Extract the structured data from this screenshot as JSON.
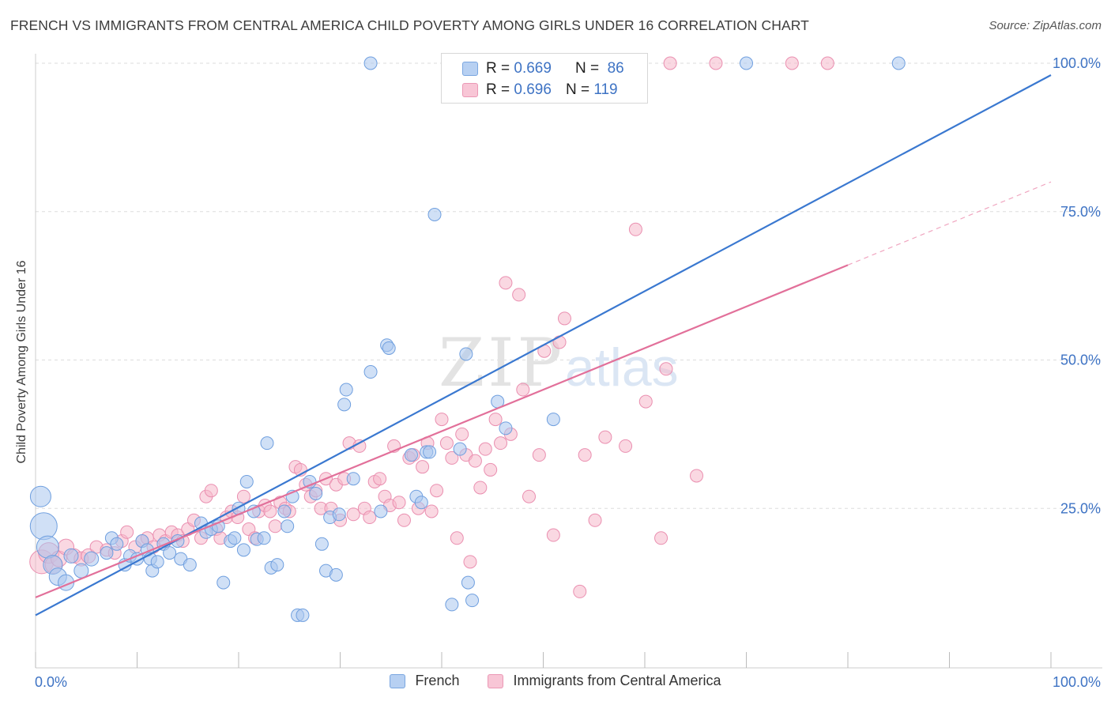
{
  "title": "FRENCH VS IMMIGRANTS FROM CENTRAL AMERICA CHILD POVERTY AMONG GIRLS UNDER 16 CORRELATION CHART",
  "source": "Source: ZipAtlas.com",
  "watermark": {
    "zip": "ZIP",
    "atlas": "atlas"
  },
  "colors": {
    "blue": "#3a78d0",
    "blue_fill": "#a9c6ef",
    "pink": "#e2709a",
    "pink_fill": "#f5b8cb",
    "axis_label": "#3e73c4",
    "grid": "#dddddd"
  },
  "legend_top": [
    {
      "r_label": "R =",
      "r": "0.669",
      "n_label": "N =",
      "n": "86"
    },
    {
      "r_label": "R =",
      "r": "0.696",
      "n_label": "N =",
      "n": "119"
    }
  ],
  "legend_bottom": [
    "French",
    "Immigrants from Central America"
  ],
  "chart_data": {
    "type": "scatter",
    "title": "FRENCH VS IMMIGRANTS FROM CENTRAL AMERICA CHILD POVERTY AMONG GIRLS UNDER 16 CORRELATION CHART",
    "xlabel": "",
    "ylabel": "Child Poverty Among Girls Under 16",
    "xlim": [
      0,
      100
    ],
    "ylim": [
      0,
      100
    ],
    "x_tick_labels": [
      "0.0%",
      "100.0%"
    ],
    "y_tick_labels": [
      "25.0%",
      "50.0%",
      "75.0%",
      "100.0%"
    ],
    "y_ticks": [
      25,
      50,
      75,
      100
    ],
    "grid": true,
    "legend": "top-center",
    "series": [
      {
        "name": "French",
        "color": "#3a78d0",
        "fill": "#a9c6ef",
        "R": 0.669,
        "N": 86,
        "trend": {
          "x": [
            0,
            100
          ],
          "y": [
            7,
            98
          ]
        },
        "points": [
          [
            0.5,
            27,
            13
          ],
          [
            0.8,
            22,
            17
          ],
          [
            1.2,
            18.5,
            14
          ],
          [
            1.7,
            15.5,
            12
          ],
          [
            2.2,
            13.5,
            11
          ],
          [
            3.0,
            12.5,
            10
          ],
          [
            3.5,
            17,
            9
          ],
          [
            4.5,
            14.5,
            9
          ],
          [
            5.5,
            16.5,
            9
          ],
          [
            7.0,
            17.5,
            8
          ],
          [
            7.5,
            20,
            8
          ],
          [
            8.0,
            19,
            8
          ],
          [
            8.8,
            15.5,
            8
          ],
          [
            9.3,
            17,
            8
          ],
          [
            10.0,
            16.5,
            8
          ],
          [
            10.5,
            19.5,
            8
          ],
          [
            11.0,
            18,
            8
          ],
          [
            11.3,
            16.5,
            8
          ],
          [
            11.5,
            14.5,
            8
          ],
          [
            12.0,
            16,
            8
          ],
          [
            12.6,
            19,
            8
          ],
          [
            13.2,
            17.5,
            8
          ],
          [
            14.0,
            19.5,
            8
          ],
          [
            14.3,
            16.5,
            8
          ],
          [
            15.2,
            15.5,
            8
          ],
          [
            16.3,
            22.5,
            8
          ],
          [
            16.8,
            21,
            8
          ],
          [
            17.3,
            21.5,
            8
          ],
          [
            18.0,
            22,
            8
          ],
          [
            18.5,
            12.5,
            8
          ],
          [
            19.2,
            19.5,
            8
          ],
          [
            19.6,
            20,
            8
          ],
          [
            20.0,
            25,
            8
          ],
          [
            20.5,
            18,
            8
          ],
          [
            20.8,
            29.5,
            8
          ],
          [
            21.5,
            24.5,
            8
          ],
          [
            21.8,
            19.8,
            8
          ],
          [
            22.5,
            20,
            8
          ],
          [
            22.8,
            36,
            8
          ],
          [
            23.2,
            15,
            8
          ],
          [
            23.8,
            15.5,
            8
          ],
          [
            24.5,
            24.5,
            8
          ],
          [
            24.8,
            22,
            8
          ],
          [
            25.3,
            27,
            8
          ],
          [
            25.8,
            7,
            8
          ],
          [
            26.3,
            7,
            8
          ],
          [
            27.0,
            29.5,
            8
          ],
          [
            27.6,
            27.5,
            8
          ],
          [
            28.2,
            19,
            8
          ],
          [
            28.6,
            14.5,
            8
          ],
          [
            29.0,
            23.5,
            8
          ],
          [
            29.6,
            13.8,
            8
          ],
          [
            29.9,
            24,
            8
          ],
          [
            30.4,
            42.5,
            8
          ],
          [
            30.6,
            45,
            8
          ],
          [
            31.3,
            30,
            8
          ],
          [
            33.0,
            48,
            8
          ],
          [
            34.0,
            24.5,
            8
          ],
          [
            34.6,
            52.5,
            8
          ],
          [
            34.8,
            52,
            8
          ],
          [
            37.0,
            34,
            8
          ],
          [
            37.5,
            27,
            8
          ],
          [
            38.0,
            26,
            8
          ],
          [
            38.5,
            34.5,
            8
          ],
          [
            38.8,
            34.5,
            8
          ],
          [
            39.3,
            74.5,
            8
          ],
          [
            41.0,
            8.8,
            8
          ],
          [
            41.8,
            35,
            8
          ],
          [
            42.4,
            51,
            8
          ],
          [
            42.6,
            12.5,
            8
          ],
          [
            43.0,
            9.5,
            8
          ],
          [
            45.5,
            43,
            8
          ],
          [
            46.3,
            38.5,
            8
          ],
          [
            51.0,
            40,
            8
          ],
          [
            33.0,
            100,
            8
          ],
          [
            70.0,
            100,
            8
          ],
          [
            85.0,
            100,
            8
          ]
        ]
      },
      {
        "name": "Immigrants from Central America",
        "color": "#e2709a",
        "fill": "#f5b8cb",
        "R": 0.696,
        "N": 119,
        "trend": {
          "x": [
            0,
            80
          ],
          "y": [
            10,
            66
          ]
        },
        "trend_dashed": {
          "x": [
            80,
            100
          ],
          "y": [
            66,
            80
          ]
        },
        "points": [
          [
            0.6,
            16,
            15
          ],
          [
            1.3,
            17.5,
            13
          ],
          [
            1.8,
            15.5,
            11
          ],
          [
            2.3,
            16.5,
            10
          ],
          [
            3.0,
            18.5,
            10
          ],
          [
            3.8,
            17,
            9
          ],
          [
            4.5,
            16.5,
            9
          ],
          [
            5.2,
            17,
            9
          ],
          [
            6.0,
            18.5,
            8
          ],
          [
            7.0,
            18,
            8
          ],
          [
            7.8,
            17.5,
            8
          ],
          [
            8.5,
            19.5,
            8
          ],
          [
            9.0,
            21,
            8
          ],
          [
            9.8,
            18.5,
            8
          ],
          [
            10.5,
            19.5,
            8
          ],
          [
            11.0,
            20,
            8
          ],
          [
            11.6,
            18.5,
            8
          ],
          [
            12.2,
            20.5,
            8
          ],
          [
            12.8,
            19.5,
            8
          ],
          [
            13.4,
            21,
            8
          ],
          [
            14.0,
            20.5,
            8
          ],
          [
            14.5,
            19.5,
            8
          ],
          [
            15.0,
            21.5,
            8
          ],
          [
            15.6,
            23,
            8
          ],
          [
            16.3,
            20,
            8
          ],
          [
            16.8,
            27,
            8
          ],
          [
            17.3,
            28,
            8
          ],
          [
            17.8,
            21.5,
            8
          ],
          [
            18.2,
            20,
            8
          ],
          [
            18.8,
            23.5,
            8
          ],
          [
            19.3,
            24.5,
            8
          ],
          [
            19.9,
            23.5,
            8
          ],
          [
            20.5,
            27,
            8
          ],
          [
            21.0,
            21.5,
            8
          ],
          [
            21.6,
            20,
            8
          ],
          [
            22.0,
            24.5,
            8
          ],
          [
            22.6,
            25.5,
            8
          ],
          [
            23.1,
            24.5,
            8
          ],
          [
            23.6,
            22,
            8
          ],
          [
            24.1,
            26,
            8
          ],
          [
            24.6,
            25,
            8
          ],
          [
            25.0,
            24.5,
            8
          ],
          [
            25.6,
            32,
            8
          ],
          [
            26.1,
            31.5,
            8
          ],
          [
            26.6,
            29,
            8
          ],
          [
            27.1,
            27,
            8
          ],
          [
            27.6,
            28,
            8
          ],
          [
            28.1,
            25,
            8
          ],
          [
            28.6,
            30,
            8
          ],
          [
            29.1,
            25,
            8
          ],
          [
            29.6,
            29,
            8
          ],
          [
            30.0,
            23,
            8
          ],
          [
            30.4,
            30,
            8
          ],
          [
            30.9,
            36,
            8
          ],
          [
            31.3,
            24,
            8
          ],
          [
            31.9,
            35.5,
            8
          ],
          [
            32.4,
            25,
            8
          ],
          [
            32.9,
            23.5,
            8
          ],
          [
            33.4,
            29.5,
            8
          ],
          [
            33.9,
            30,
            8
          ],
          [
            34.4,
            27,
            8
          ],
          [
            34.9,
            25.5,
            8
          ],
          [
            35.3,
            35.5,
            8
          ],
          [
            35.8,
            26,
            8
          ],
          [
            36.3,
            23,
            8
          ],
          [
            36.8,
            33.5,
            8
          ],
          [
            37.2,
            34,
            8
          ],
          [
            37.7,
            25,
            8
          ],
          [
            38.1,
            32,
            8
          ],
          [
            38.6,
            36,
            8
          ],
          [
            39.0,
            24.5,
            8
          ],
          [
            39.5,
            28,
            8
          ],
          [
            40.0,
            40,
            8
          ],
          [
            40.5,
            36,
            8
          ],
          [
            41.0,
            33.5,
            8
          ],
          [
            41.5,
            20,
            8
          ],
          [
            42.0,
            37.5,
            8
          ],
          [
            42.4,
            34,
            8
          ],
          [
            42.8,
            16,
            8
          ],
          [
            43.3,
            33,
            8
          ],
          [
            43.8,
            28.5,
            8
          ],
          [
            44.3,
            35,
            8
          ],
          [
            44.8,
            31.5,
            8
          ],
          [
            45.3,
            40,
            8
          ],
          [
            45.8,
            36,
            8
          ],
          [
            46.3,
            63,
            8
          ],
          [
            46.8,
            37.5,
            8
          ],
          [
            47.6,
            61,
            8
          ],
          [
            48.0,
            45,
            8
          ],
          [
            48.6,
            27,
            8
          ],
          [
            49.6,
            34,
            8
          ],
          [
            50.1,
            51.5,
            8
          ],
          [
            51.0,
            20.5,
            8
          ],
          [
            51.6,
            53,
            8
          ],
          [
            52.1,
            57,
            8
          ],
          [
            53.6,
            11,
            8
          ],
          [
            54.1,
            34,
            8
          ],
          [
            55.1,
            23,
            8
          ],
          [
            56.1,
            37,
            8
          ],
          [
            58.1,
            35.5,
            8
          ],
          [
            59.1,
            72,
            8
          ],
          [
            60.1,
            43,
            8
          ],
          [
            61.6,
            20,
            8
          ],
          [
            62.1,
            48.5,
            8
          ],
          [
            65.1,
            30.5,
            8
          ],
          [
            48.0,
            100,
            8
          ],
          [
            58.5,
            100,
            8
          ],
          [
            62.5,
            100,
            8
          ],
          [
            67.0,
            100,
            8
          ],
          [
            74.5,
            100,
            8
          ],
          [
            78.0,
            100,
            8
          ]
        ]
      }
    ]
  }
}
